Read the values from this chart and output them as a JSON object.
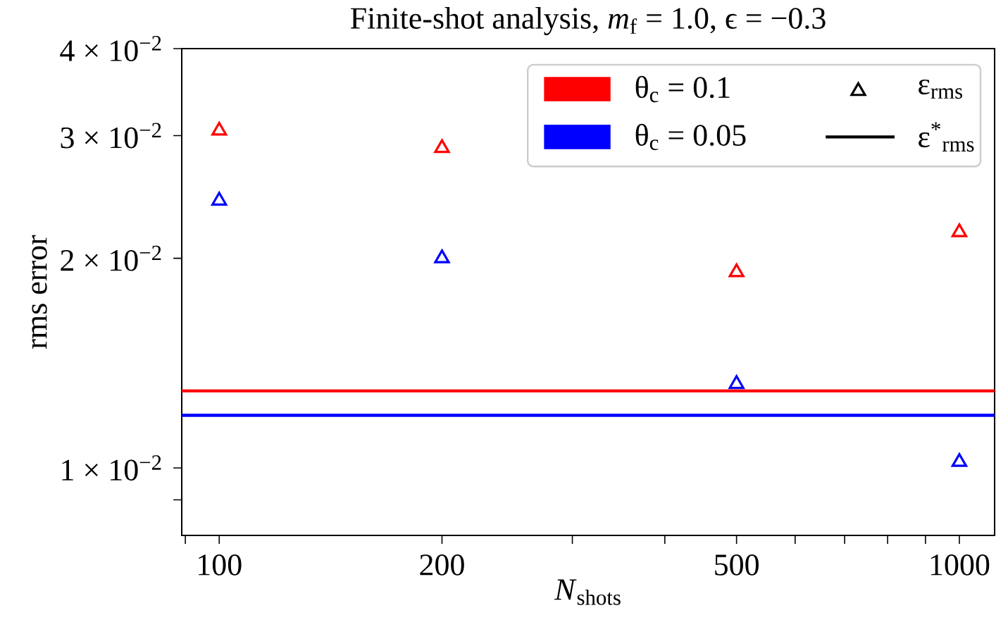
{
  "chart_data": {
    "type": "scatter",
    "title": "Finite-shot analysis, *m*$_{f}$ = 1.0, ϵ = −0.3",
    "xlabel": "*N*$_{shots}$",
    "ylabel": "rms error",
    "x": [
      100,
      200,
      500,
      1000
    ],
    "series": [
      {
        "name": "θ$_{c}$ = 0.1",
        "color": "#ff0000",
        "values": [
          0.0305,
          0.0288,
          0.0191,
          0.0218
        ]
      },
      {
        "name": "θ$_{c}$ = 0.05",
        "color": "#0000ff",
        "values": [
          0.0242,
          0.02,
          0.0132,
          0.0102
        ]
      }
    ],
    "ref_lines": [
      {
        "axis": "y",
        "value": 0.0129,
        "color": "#ff0000"
      },
      {
        "axis": "y",
        "value": 0.0119,
        "color": "#0000ff"
      }
    ],
    "annotations": [
      "ε$_{rms}$",
      "ε$^{*}$$_{rms}$"
    ],
    "marker": "triangle",
    "log": "xy",
    "legend": "top right",
    "xlim": [
      89,
      1116
    ],
    "ylim": [
      0.008,
      0.04
    ],
    "xticks": [
      {
        "value": 90,
        "label": null
      },
      100,
      200,
      {
        "value": 300,
        "label": null
      },
      {
        "value": 400,
        "label": null
      },
      500,
      {
        "value": 600,
        "label": null
      },
      {
        "value": 700,
        "label": null
      },
      {
        "value": 800,
        "label": null
      },
      {
        "value": 900,
        "label": null
      },
      1000
    ],
    "yticks": [
      {
        "value": 0.009,
        "label": null
      },
      {
        "value": 0.01,
        "label": "1 × 10$^{−2}$"
      },
      {
        "value": 0.02,
        "label": "2 × 10$^{−2}$"
      },
      {
        "value": 0.03,
        "label": "3 × 10$^{−2}$"
      },
      {
        "value": 0.04,
        "label": "4 × 10$^{−2}$"
      }
    ]
  }
}
